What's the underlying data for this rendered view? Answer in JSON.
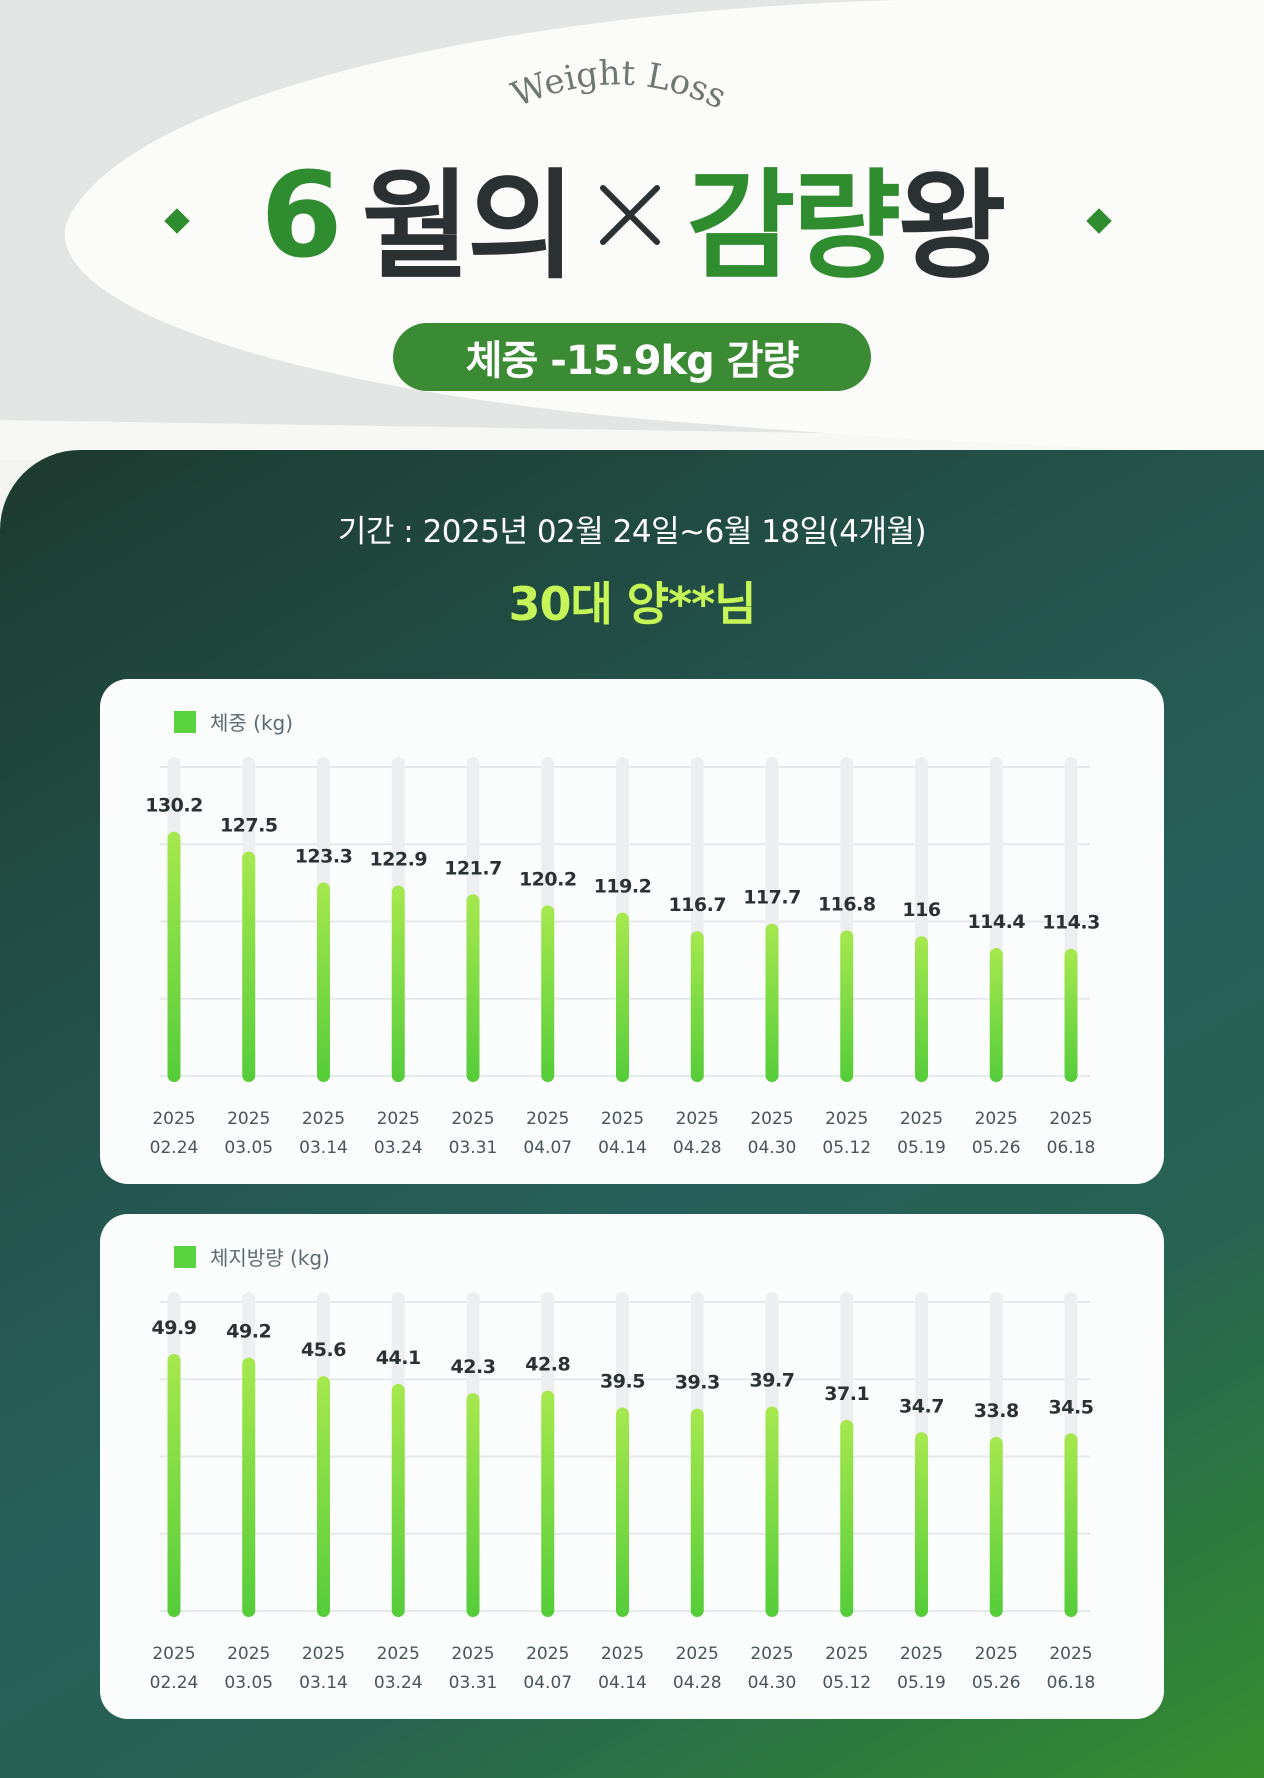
{
  "header": {
    "arc_text": "Weight Loss",
    "title": {
      "month": "6",
      "month_suffix": "월의",
      "symbol": "×",
      "king_a": "감량",
      "king_b": "왕"
    },
    "badge": "체중 -15.9kg 감량"
  },
  "info": {
    "period": "기간 : 2025년 02월 24일~6월 18일(4개월)",
    "person": "30대 양**님"
  },
  "colors": {
    "brand_green": "#2f8c2f",
    "badge_green": "#3a8b34",
    "accent_lime": "#c6f558",
    "bar_top": "#a6e84e",
    "bar_bottom": "#55cc3a",
    "track": "#eceef0"
  },
  "chart_data": [
    {
      "type": "bar",
      "legend": "체중 (kg)",
      "categories": [
        [
          "2025",
          "02.24"
        ],
        [
          "2025",
          "03.05"
        ],
        [
          "2025",
          "03.14"
        ],
        [
          "2025",
          "03.24"
        ],
        [
          "2025",
          "03.31"
        ],
        [
          "2025",
          "04.07"
        ],
        [
          "2025",
          "04.14"
        ],
        [
          "2025",
          "04.28"
        ],
        [
          "2025",
          "04.30"
        ],
        [
          "2025",
          "05.12"
        ],
        [
          "2025",
          "05.19"
        ],
        [
          "2025",
          "05.26"
        ],
        [
          "2025",
          "06.18"
        ]
      ],
      "values": [
        130.2,
        127.5,
        123.3,
        122.9,
        121.7,
        120.2,
        119.2,
        116.7,
        117.7,
        116.8,
        116,
        114.4,
        114.3
      ],
      "labels": [
        "130.2",
        "127.5",
        "123.3",
        "122.9",
        "121.7",
        "120.2",
        "119.2",
        "116.7",
        "117.7",
        "116.8",
        "116",
        "114.4",
        "114.3"
      ],
      "ylim": [
        97,
        139
      ],
      "grid": true
    },
    {
      "type": "bar",
      "legend": "체지방량 (kg)",
      "categories": [
        [
          "2025",
          "02.24"
        ],
        [
          "2025",
          "03.05"
        ],
        [
          "2025",
          "03.14"
        ],
        [
          "2025",
          "03.24"
        ],
        [
          "2025",
          "03.31"
        ],
        [
          "2025",
          "04.07"
        ],
        [
          "2025",
          "04.14"
        ],
        [
          "2025",
          "04.28"
        ],
        [
          "2025",
          "04.30"
        ],
        [
          "2025",
          "05.12"
        ],
        [
          "2025",
          "05.19"
        ],
        [
          "2025",
          "05.26"
        ],
        [
          "2025",
          "06.18"
        ]
      ],
      "values": [
        49.9,
        49.2,
        45.6,
        44.1,
        42.3,
        42.8,
        39.5,
        39.3,
        39.7,
        37.1,
        34.7,
        33.8,
        34.5
      ],
      "labels": [
        "49.9",
        "49.2",
        "45.6",
        "44.1",
        "42.3",
        "42.8",
        "39.5",
        "39.3",
        "39.7",
        "37.1",
        "34.7",
        "33.8",
        "34.5"
      ],
      "ylim": [
        0,
        60
      ],
      "grid": true
    }
  ]
}
